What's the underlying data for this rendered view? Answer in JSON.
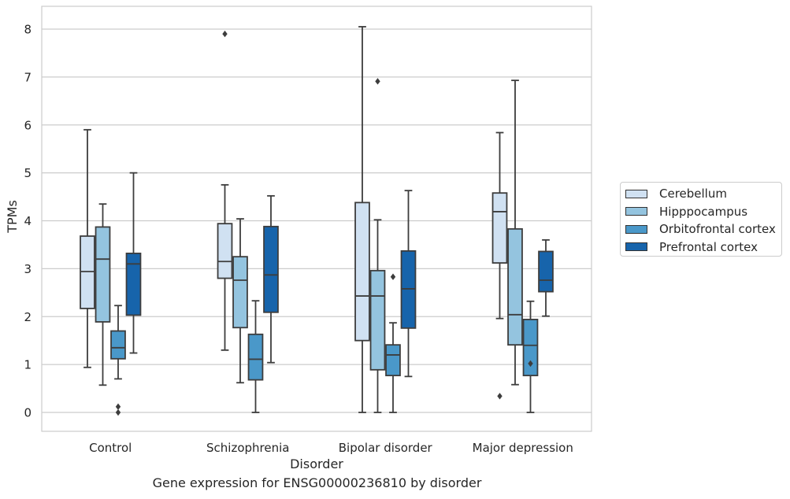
{
  "chart_data": {
    "type": "box",
    "title": "Gene expression for ENSG00000236810 by disorder",
    "xlabel": "Disorder",
    "ylabel": "TPMs",
    "ylim": [
      -0.4,
      8.45
    ],
    "yticks": [
      0,
      1,
      2,
      3,
      4,
      5,
      6,
      7,
      8
    ],
    "grid": "horizontal",
    "legend_position": "right",
    "categories": [
      "Control",
      "Schizophrenia",
      "Bipolar disorder",
      "Major depression"
    ],
    "series": [
      {
        "name": "Cerebellum",
        "color": "#d0e1f2",
        "boxes": [
          {
            "whisker_low": 0.94,
            "q1": 2.17,
            "median": 2.94,
            "q3": 3.68,
            "whisker_high": 5.9,
            "outliers": []
          },
          {
            "whisker_low": 1.3,
            "q1": 2.8,
            "median": 3.15,
            "q3": 3.94,
            "whisker_high": 4.75,
            "outliers": [
              7.9
            ]
          },
          {
            "whisker_low": 0.0,
            "q1": 1.5,
            "median": 2.43,
            "q3": 4.38,
            "whisker_high": 8.05,
            "outliers": []
          },
          {
            "whisker_low": 1.96,
            "q1": 3.12,
            "median": 4.19,
            "q3": 4.58,
            "whisker_high": 5.84,
            "outliers": [
              0.34
            ]
          }
        ]
      },
      {
        "name": "Hipppocampus",
        "color": "#94c4df",
        "boxes": [
          {
            "whisker_low": 0.57,
            "q1": 1.89,
            "median": 3.2,
            "q3": 3.87,
            "whisker_high": 4.35,
            "outliers": []
          },
          {
            "whisker_low": 0.62,
            "q1": 1.77,
            "median": 2.76,
            "q3": 3.25,
            "whisker_high": 4.04,
            "outliers": []
          },
          {
            "whisker_low": 0.0,
            "q1": 0.89,
            "median": 2.43,
            "q3": 2.96,
            "whisker_high": 4.02,
            "outliers": [
              6.91
            ]
          },
          {
            "whisker_low": 0.58,
            "q1": 1.41,
            "median": 2.04,
            "q3": 3.83,
            "whisker_high": 6.93,
            "outliers": []
          }
        ]
      },
      {
        "name": "Orbitofrontal cortex",
        "color": "#4a98c9",
        "boxes": [
          {
            "whisker_low": 0.7,
            "q1": 1.12,
            "median": 1.35,
            "q3": 1.7,
            "whisker_high": 2.23,
            "outliers": [
              0.12,
              0.0
            ]
          },
          {
            "whisker_low": 0.0,
            "q1": 0.68,
            "median": 1.11,
            "q3": 1.63,
            "whisker_high": 2.33,
            "outliers": []
          },
          {
            "whisker_low": 0.0,
            "q1": 0.77,
            "median": 1.2,
            "q3": 1.41,
            "whisker_high": 1.87,
            "outliers": [
              2.83
            ]
          },
          {
            "whisker_low": 0.0,
            "q1": 0.77,
            "median": 1.4,
            "q3": 1.94,
            "whisker_high": 2.32,
            "outliers": [
              1.02
            ]
          }
        ]
      },
      {
        "name": "Prefrontal cortex",
        "color": "#1764ab",
        "boxes": [
          {
            "whisker_low": 1.24,
            "q1": 2.03,
            "median": 3.1,
            "q3": 3.32,
            "whisker_high": 5.0,
            "outliers": []
          },
          {
            "whisker_low": 1.04,
            "q1": 2.09,
            "median": 2.87,
            "q3": 3.88,
            "whisker_high": 4.52,
            "outliers": []
          },
          {
            "whisker_low": 0.75,
            "q1": 1.76,
            "median": 2.58,
            "q3": 3.37,
            "whisker_high": 4.63,
            "outliers": []
          },
          {
            "whisker_low": 2.01,
            "q1": 2.52,
            "median": 2.76,
            "q3": 3.36,
            "whisker_high": 3.6,
            "outliers": []
          }
        ]
      }
    ]
  }
}
